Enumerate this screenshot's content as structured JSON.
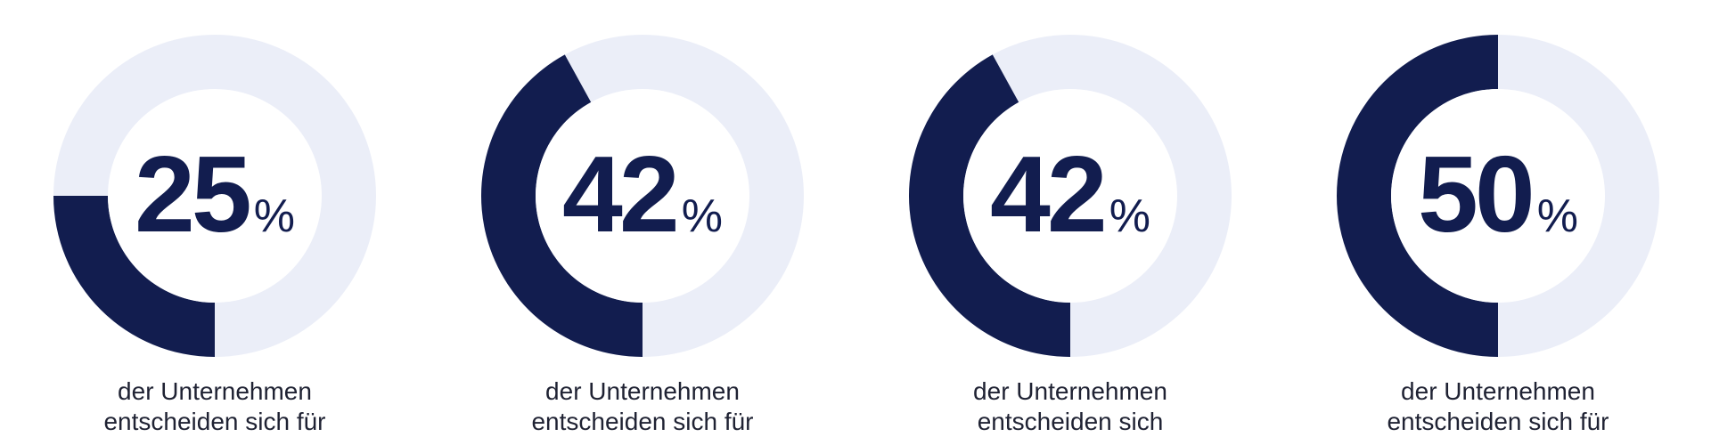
{
  "colors": {
    "accent": "#121d4f",
    "track": "#ebeef8",
    "center": "#ffffff",
    "caption": "#1f2233"
  },
  "chart_data": [
    {
      "type": "pie",
      "value": 25,
      "unit": "%",
      "caption_lines": [
        "der Unternehmen",
        "entscheiden sich für"
      ]
    },
    {
      "type": "pie",
      "value": 42,
      "unit": "%",
      "caption_lines": [
        "der Unternehmen",
        "entscheiden sich für"
      ]
    },
    {
      "type": "pie",
      "value": 42,
      "unit": "%",
      "caption_lines": [
        "der Unternehmen",
        "entscheiden sich"
      ]
    },
    {
      "type": "pie",
      "value": 50,
      "unit": "%",
      "caption_lines": [
        "der Unternehmen",
        "entscheiden sich für"
      ]
    }
  ]
}
